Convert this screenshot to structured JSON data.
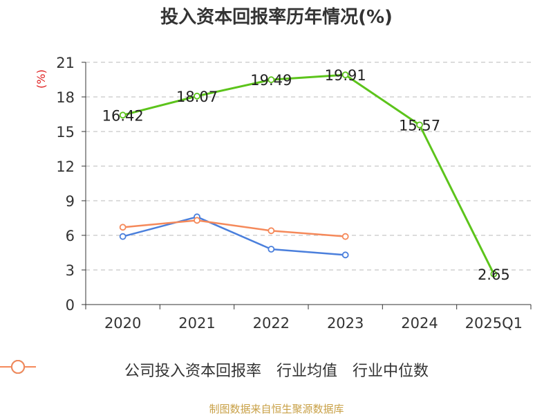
{
  "chart_data": {
    "type": "line",
    "title": "投入资本回报率历年情况(%)",
    "ylabel": "(%)",
    "categories": [
      "2020",
      "2021",
      "2022",
      "2023",
      "2024",
      "2025Q1"
    ],
    "ylim": [
      0,
      21
    ],
    "yticks": [
      0,
      3,
      6,
      9,
      12,
      15,
      18,
      21
    ],
    "grid": true,
    "legend_position": "bottom",
    "series": [
      {
        "name": "公司投入资本回报率",
        "color": "#5cc41b",
        "values": [
          16.42,
          18.07,
          19.49,
          19.91,
          15.57,
          2.65
        ],
        "labels": [
          "16.42",
          "18.07",
          "19.49",
          "19.91",
          "15.57",
          "2.65"
        ]
      },
      {
        "name": "行业均值",
        "color": "#4a7fdc",
        "values": [
          5.9,
          7.6,
          4.8,
          4.3,
          null,
          null
        ]
      },
      {
        "name": "行业中位数",
        "color": "#f5895a",
        "values": [
          6.7,
          7.3,
          6.4,
          5.9,
          null,
          null
        ]
      }
    ]
  },
  "source_text": "制图数据来自恒生聚源数据库"
}
